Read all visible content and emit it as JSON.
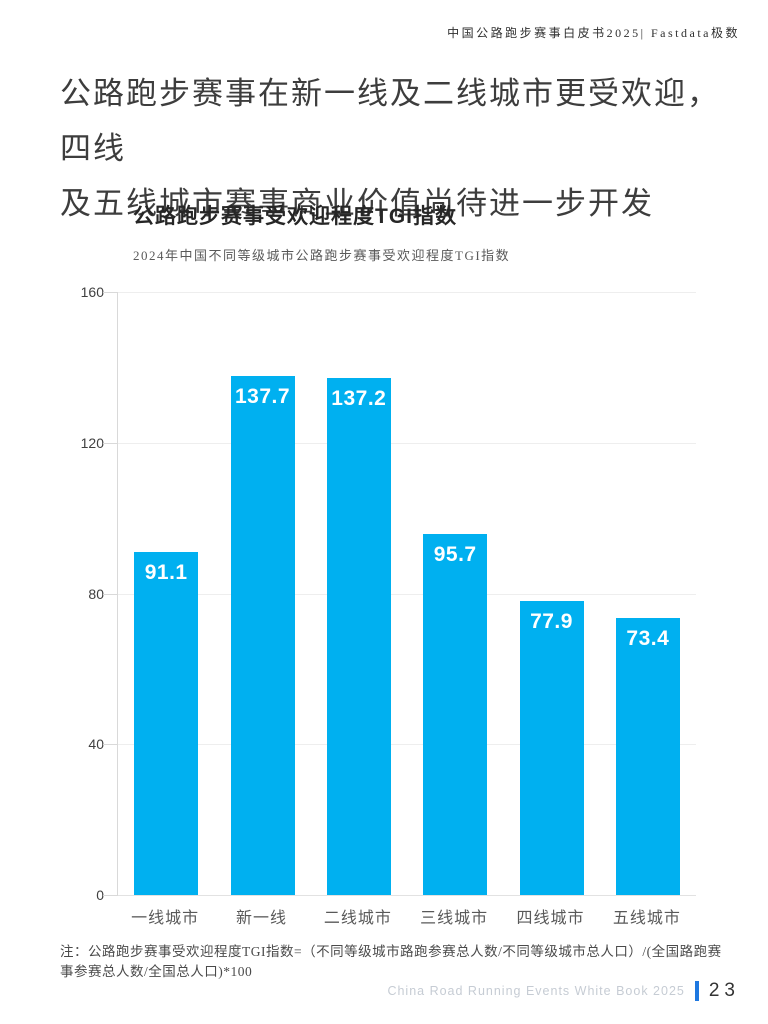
{
  "doc_header": {
    "text": "中国公路跑步赛事白皮书2025| Fastdata极数"
  },
  "headline": {
    "line1": "公路跑步赛事在新一线及二线城市更受欢迎，四线",
    "line2": "及五线城市赛事商业价值尚待进一步开发"
  },
  "chart_data": {
    "type": "bar",
    "title": "公路跑步赛事受欢迎程度TGI指数",
    "subtitle": "2024年中国不同等级城市公路跑步赛事受欢迎程度TGI指数",
    "categories": [
      "一线城市",
      "新一线",
      "二线城市",
      "三线城市",
      "四线城市",
      "五线城市"
    ],
    "values": [
      91.1,
      137.7,
      137.2,
      95.7,
      77.9,
      73.4
    ],
    "xlabel": "",
    "ylabel": "",
    "ylim": [
      0,
      160
    ],
    "yticks": [
      0,
      40,
      80,
      120,
      160
    ],
    "grid": true,
    "legend_position": "none",
    "bar_color": "#00B0F0",
    "value_label_color": "#FFFFFF"
  },
  "footnote": {
    "text": "注：公路跑步赛事受欢迎程度TGI指数=（不同等级城市路跑参赛总人数/不同等级城市总人口）/(全国路跑赛事参赛总人数/全国总人口)*100"
  },
  "footer": {
    "left_text": "China Road Running Events White Book 2025",
    "page_number": "23",
    "accent_color": "#1E78E0"
  }
}
